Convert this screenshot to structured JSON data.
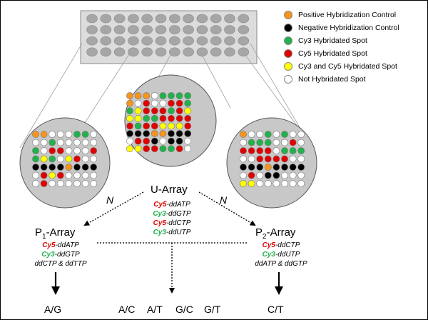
{
  "legend": [
    {
      "label": "Positive Hybridization Control",
      "color": "#f7941d"
    },
    {
      "label": "Negative Hybridization Control",
      "color": "#000000"
    },
    {
      "label": "Cy3 Hybridated Spot",
      "color": "#22b14c"
    },
    {
      "label": "Cy5 Hybridated Spot",
      "color": "#e00000"
    },
    {
      "label": "Cy3 and Cy5 Hybridated Spot",
      "color": "#ffff00"
    },
    {
      "label": "Not Hybridated Spot",
      "color": "#ffffff"
    }
  ],
  "u_array": {
    "title": "U-Array",
    "reagents": [
      {
        "dye": "Cy5",
        "rest": "-ddATP"
      },
      {
        "dye": "Cy3",
        "rest": "-ddGTP"
      },
      {
        "dye": "Cy5",
        "rest": "-ddCTP"
      },
      {
        "dye": "Cy3",
        "rest": "-ddUTP"
      }
    ]
  },
  "p1_array": {
    "prefix": "P",
    "sub": "1",
    "suffix": "-Array",
    "line1": {
      "dye": "Cy5",
      "rest": "-ddATP"
    },
    "line2": {
      "dye": "Cy3",
      "rest": "-ddGTP"
    },
    "line3": "ddCTP & ddTTP"
  },
  "p2_array": {
    "prefix": "P",
    "sub": "2",
    "suffix": "-Array",
    "line1": {
      "dye": "Cy5",
      "rest": "-ddCTP"
    },
    "line2": {
      "dye": "Cy3",
      "rest": "-ddUTP"
    },
    "line3": "ddATP & ddGTP"
  },
  "n_label": "N",
  "outcomes": {
    "left": "A/G",
    "middle": [
      "A/C",
      "A/T",
      "G/C",
      "G/T"
    ],
    "right": "C/T"
  }
}
